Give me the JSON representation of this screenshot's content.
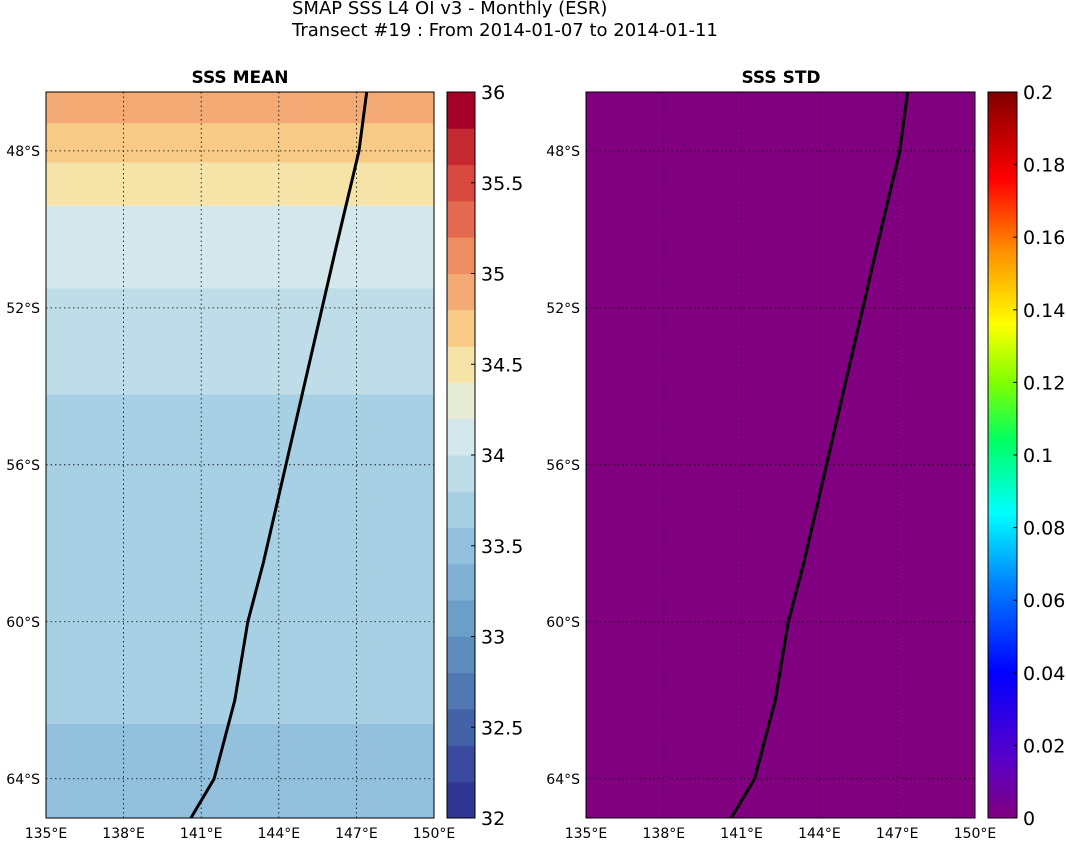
{
  "figure": {
    "title_line1": "SMAP SSS L4 OI v3 - Monthly (ESR)",
    "title_line2": "Transect #19 : From 2014-01-07 to 2014-01-11"
  },
  "chart_data": [
    {
      "type": "heatmap",
      "title": "SSS MEAN",
      "xlabel": "",
      "ylabel": "",
      "x_range_lon_E": [
        135,
        150
      ],
      "y_range_lat": [
        -46.5,
        -65
      ],
      "x_ticks": [
        "135°E",
        "138°E",
        "141°E",
        "144°E",
        "147°E",
        "150°E"
      ],
      "x_tick_values": [
        135,
        138,
        141,
        144,
        147,
        150
      ],
      "y_ticks": [
        "48°S",
        "52°S",
        "56°S",
        "60°S",
        "64°S"
      ],
      "y_tick_values": [
        -48,
        -52,
        -56,
        -60,
        -64
      ],
      "grid": true,
      "colorbar": {
        "ticks": [
          "36",
          "35.5",
          "35",
          "34.5",
          "34",
          "33.5",
          "33",
          "32.5",
          "32"
        ],
        "range": [
          32,
          36
        ],
        "step": 0.2,
        "colormap": "RdYlBu_r"
      },
      "salinity_bands": [
        {
          "lat_from": -46.5,
          "lat_to": -47.3,
          "value": 34.9
        },
        {
          "lat_from": -47.3,
          "lat_to": -48.3,
          "value": 34.7
        },
        {
          "lat_from": -48.3,
          "lat_to": -49.4,
          "value": 34.5
        },
        {
          "lat_from": -49.4,
          "lat_to": -51.5,
          "value": 34.1
        },
        {
          "lat_from": -51.5,
          "lat_to": -54.2,
          "value": 33.9
        },
        {
          "lat_from": -54.2,
          "lat_to": -62.6,
          "value": 33.7
        },
        {
          "lat_from": -62.6,
          "lat_to": -65.0,
          "value": 33.5
        }
      ],
      "transect_line": {
        "lon": [
          147.4,
          147.1,
          146.2,
          145.5,
          144.8,
          144.1,
          143.4,
          142.8,
          142.3,
          141.5,
          140.6
        ],
        "lat": [
          -46.5,
          -48.0,
          -50.5,
          -52.5,
          -54.5,
          -56.5,
          -58.5,
          -60.0,
          -62.0,
          -64.0,
          -65.0
        ]
      }
    },
    {
      "type": "heatmap",
      "title": "SSS STD",
      "xlabel": "",
      "ylabel": "",
      "x_range_lon_E": [
        135,
        150
      ],
      "y_range_lat": [
        -46.5,
        -65
      ],
      "x_ticks": [
        "135°E",
        "138°E",
        "141°E",
        "144°E",
        "147°E",
        "150°E"
      ],
      "x_tick_values": [
        135,
        138,
        141,
        144,
        147,
        150
      ],
      "y_ticks": [
        "48°S",
        "52°S",
        "56°S",
        "60°S",
        "64°S"
      ],
      "y_tick_values": [
        -48,
        -52,
        -56,
        -60,
        -64
      ],
      "grid": true,
      "field_value": 0,
      "field_color": "#800080",
      "colorbar": {
        "ticks": [
          "0.2",
          "0.18",
          "0.16",
          "0.14",
          "0.12",
          "0.1",
          "0.08",
          "0.06",
          "0.04",
          "0.02",
          "0"
        ],
        "range": [
          0,
          0.2
        ],
        "colormap": "jet-purple"
      },
      "transect_line": {
        "lon": [
          147.4,
          147.1,
          146.2,
          145.5,
          144.8,
          144.1,
          143.4,
          142.8,
          142.3,
          141.5,
          140.6
        ],
        "lat": [
          -46.5,
          -48.0,
          -50.5,
          -52.5,
          -54.5,
          -56.5,
          -58.5,
          -60.0,
          -62.0,
          -64.0,
          -65.0
        ]
      }
    }
  ]
}
